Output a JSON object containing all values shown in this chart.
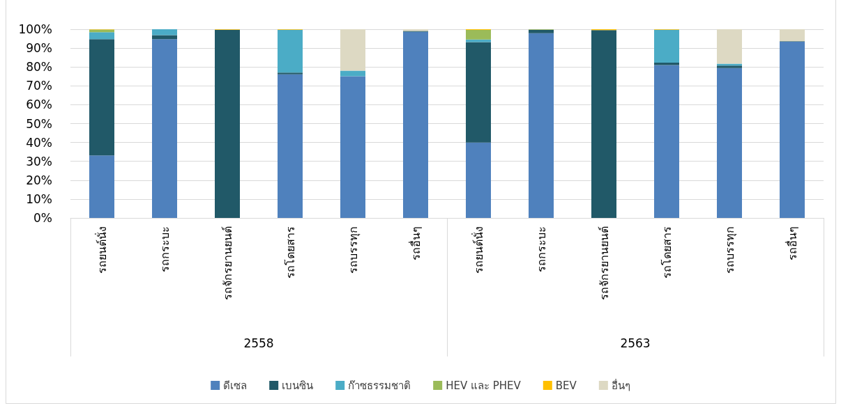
{
  "chart_data": {
    "type": "bar",
    "stacked": true,
    "categories": [
      "รถยนต์นั่ง",
      "รถกระบะ",
      "รถจักรยานยนต์",
      "รถโดยสาร",
      "รถบรรทุก",
      "รถอื่นๆ",
      "รถยนต์นั่ง",
      "รถกระบะ",
      "รถจักรยานยนต์",
      "รถโดยสาร",
      "รถบรรทุก",
      "รถอื่นๆ"
    ],
    "annotations": [
      "2558",
      "2563"
    ],
    "series": [
      {
        "name": "ดีเซล",
        "color": "#4f81bd",
        "values": [
          33.1,
          94.7,
          null,
          76.1,
          75.1,
          98.6,
          39.9,
          97.9,
          null,
          81.0,
          79.4,
          93.4
        ]
      },
      {
        "name": "เบนซิน",
        "color": "#215968",
        "values": [
          61.6,
          2.2,
          99.7,
          0.9,
          null,
          0.5,
          53.3,
          1.8,
          99.5,
          1.3,
          1.3,
          0.2
        ]
      },
      {
        "name": "ก๊าซธรรมชาติ",
        "color": "#4bacc6",
        "values": [
          3.7,
          3.1,
          null,
          22.7,
          2.9,
          null,
          1.4,
          null,
          null,
          17.4,
          1.0,
          null
        ]
      },
      {
        "name": "HEV และ PHEV",
        "color": "#9bbb59",
        "values": [
          1.4,
          null,
          null,
          null,
          null,
          null,
          5.0,
          0.3,
          null,
          null,
          null,
          null
        ]
      },
      {
        "name": "BEV",
        "color": "#ffc000",
        "values": [
          0.2,
          null,
          0.3,
          0.3,
          null,
          null,
          0.4,
          null,
          0.5,
          0.3,
          null,
          null
        ]
      },
      {
        "name": "อื่นๆ",
        "color": "#ddd9c3",
        "values": [
          null,
          null,
          null,
          null,
          22.0,
          0.9,
          null,
          null,
          null,
          null,
          18.3,
          6.4
        ]
      }
    ],
    "ylim": [
      0,
      100
    ],
    "yticks": [
      {
        "value": 0,
        "label": "0%"
      },
      {
        "value": 10,
        "label": "10%"
      },
      {
        "value": 20,
        "label": "20%"
      },
      {
        "value": 30,
        "label": "30%"
      },
      {
        "value": 40,
        "label": "40%"
      },
      {
        "value": 50,
        "label": "50%"
      },
      {
        "value": 60,
        "label": "60%"
      },
      {
        "value": 70,
        "label": "70%"
      },
      {
        "value": 80,
        "label": "80%"
      },
      {
        "value": 90,
        "label": "90%"
      },
      {
        "value": 100,
        "label": "100%"
      }
    ],
    "grid": "y",
    "legend": "bottom"
  }
}
